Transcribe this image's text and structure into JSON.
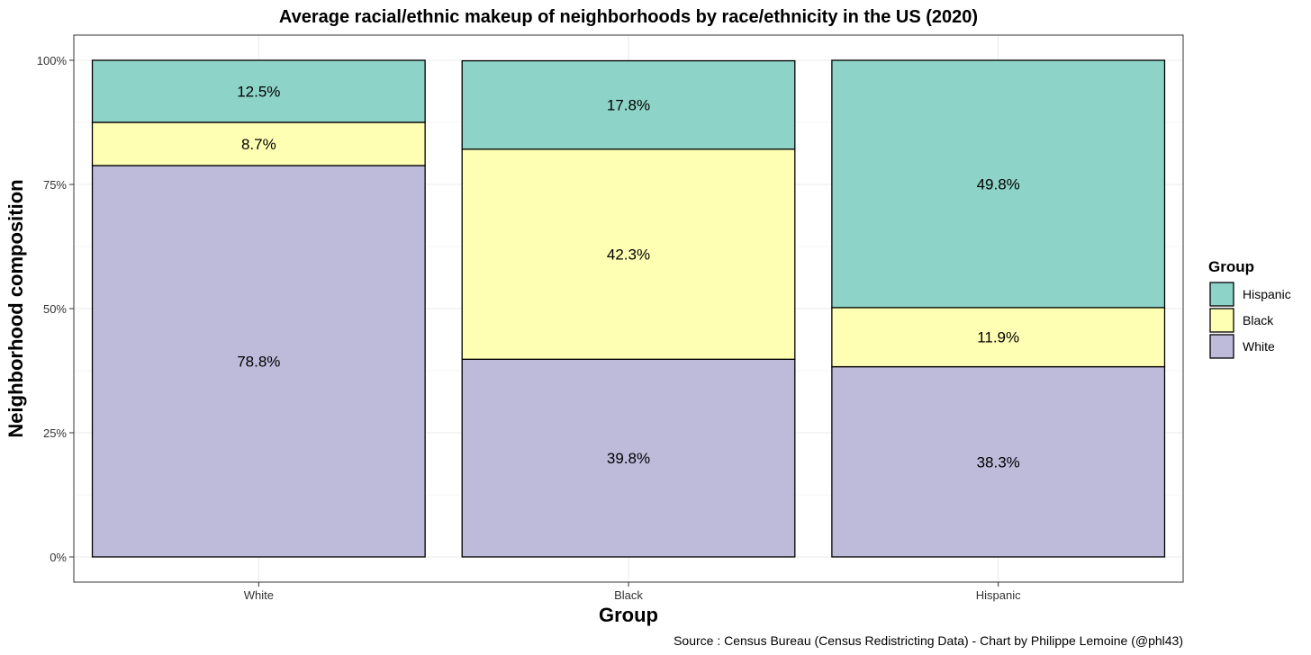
{
  "chart_data": {
    "type": "bar",
    "stacked": true,
    "title": "Average racial/ethnic makeup of neighborhoods by race/ethnicity in the US (2020)",
    "xlabel": "Group",
    "ylabel": "Neighborhood composition",
    "categories": [
      "White",
      "Black",
      "Hispanic"
    ],
    "y_ticks": [
      0,
      25,
      50,
      75,
      100
    ],
    "y_tick_labels": [
      "0%",
      "25%",
      "50%",
      "75%",
      "100%"
    ],
    "ylim": [
      0,
      100
    ],
    "grid": true,
    "series": [
      {
        "name": "White",
        "color": "#bebada",
        "values": [
          78.8,
          39.8,
          38.3
        ],
        "labels": [
          "78.8%",
          "39.8%",
          "38.3%"
        ]
      },
      {
        "name": "Black",
        "color": "#ffffb3",
        "values": [
          8.7,
          42.3,
          11.9
        ],
        "labels": [
          "8.7%",
          "42.3%",
          "11.9%"
        ]
      },
      {
        "name": "Hispanic",
        "color": "#8dd3c7",
        "values": [
          12.5,
          17.8,
          49.8
        ],
        "labels": [
          "12.5%",
          "17.8%",
          "49.8%"
        ]
      }
    ],
    "legend": {
      "title": "Group",
      "position": "right",
      "order": [
        "Hispanic",
        "Black",
        "White"
      ]
    },
    "caption": "Source : Census Bureau (Census Redistricting Data) - Chart by Philippe Lemoine (@phl43)"
  }
}
